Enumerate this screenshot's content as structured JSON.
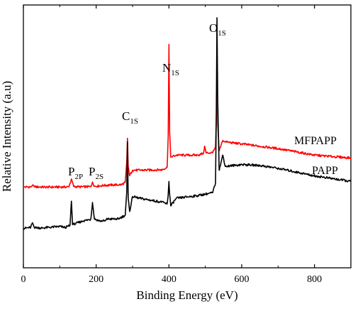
{
  "chart_data": {
    "type": "line",
    "title": "",
    "xlabel": "Binding Energy (eV)",
    "ylabel": "Relative Intensity (a.u)",
    "xlim": [
      0,
      900
    ],
    "xticks": [
      0,
      200,
      400,
      600,
      800
    ],
    "y_tick_labels": false,
    "grid": false,
    "legend": "none",
    "series": [
      {
        "name": "MFPAPP",
        "color": "#ff0000",
        "values": [
          [
            0,
            0.03
          ],
          [
            20,
            0.031
          ],
          [
            25,
            0.04
          ],
          [
            30,
            0.031
          ],
          [
            60,
            0.03
          ],
          [
            100,
            0.03
          ],
          [
            125,
            0.031
          ],
          [
            132,
            0.073
          ],
          [
            138,
            0.033
          ],
          [
            150,
            0.031
          ],
          [
            185,
            0.032
          ],
          [
            190,
            0.057
          ],
          [
            195,
            0.034
          ],
          [
            230,
            0.04
          ],
          [
            270,
            0.043
          ],
          [
            280,
            0.055
          ],
          [
            284,
            0.16
          ],
          [
            286,
            0.29
          ],
          [
            288,
            0.14
          ],
          [
            292,
            0.09
          ],
          [
            300,
            0.12
          ],
          [
            320,
            0.12
          ],
          [
            380,
            0.122
          ],
          [
            395,
            0.135
          ],
          [
            398,
            0.3
          ],
          [
            400,
            0.79
          ],
          [
            402,
            0.32
          ],
          [
            405,
            0.19
          ],
          [
            420,
            0.2
          ],
          [
            480,
            0.2
          ],
          [
            495,
            0.21
          ],
          [
            498,
            0.248
          ],
          [
            502,
            0.212
          ],
          [
            520,
            0.213
          ],
          [
            528,
            0.24
          ],
          [
            531,
            0.47
          ],
          [
            532,
            0.655
          ],
          [
            534,
            0.36
          ],
          [
            538,
            0.226
          ],
          [
            548,
            0.278
          ],
          [
            560,
            0.269
          ],
          [
            600,
            0.26
          ],
          [
            700,
            0.235
          ],
          [
            800,
            0.2
          ],
          [
            900,
            0.185
          ]
        ]
      },
      {
        "name": "PAPP",
        "color": "#000000",
        "values": [
          [
            0,
            -0.19
          ],
          [
            20,
            -0.185
          ],
          [
            25,
            -0.16
          ],
          [
            30,
            -0.185
          ],
          [
            50,
            -0.188
          ],
          [
            100,
            -0.18
          ],
          [
            115,
            -0.185
          ],
          [
            128,
            -0.175
          ],
          [
            132,
            -0.045
          ],
          [
            135,
            -0.17
          ],
          [
            150,
            -0.16
          ],
          [
            165,
            -0.15
          ],
          [
            185,
            -0.142
          ],
          [
            190,
            -0.052
          ],
          [
            195,
            -0.14
          ],
          [
            210,
            -0.15
          ],
          [
            225,
            -0.15
          ],
          [
            230,
            -0.14
          ],
          [
            260,
            -0.14
          ],
          [
            280,
            -0.12
          ],
          [
            284,
            0.0
          ],
          [
            286,
            0.271
          ],
          [
            288,
            -0.03
          ],
          [
            292,
            -0.1
          ],
          [
            300,
            -0.02
          ],
          [
            320,
            -0.03
          ],
          [
            380,
            -0.05
          ],
          [
            395,
            -0.06
          ],
          [
            398,
            -0.01
          ],
          [
            400,
            0.06
          ],
          [
            402,
            -0.01
          ],
          [
            405,
            -0.07
          ],
          [
            420,
            -0.03
          ],
          [
            480,
            -0.015
          ],
          [
            520,
            0.0
          ],
          [
            528,
            0.05
          ],
          [
            530,
            0.38
          ],
          [
            532,
            0.932
          ],
          [
            534,
            0.5
          ],
          [
            538,
            0.12
          ],
          [
            548,
            0.2
          ],
          [
            555,
            0.14
          ],
          [
            600,
            0.15
          ],
          [
            650,
            0.145
          ],
          [
            700,
            0.13
          ],
          [
            800,
            0.09
          ],
          [
            900,
            0.06
          ]
        ]
      }
    ],
    "series_labels": [
      {
        "series": "MFPAPP",
        "text": "MFPAPP"
      },
      {
        "series": "PAPP",
        "text": "PAPP"
      }
    ],
    "annotations": [
      {
        "name": "p2p",
        "main": "P",
        "sub": "2P",
        "x": 130
      },
      {
        "name": "p2s",
        "main": "P",
        "sub": "2S",
        "x": 190
      },
      {
        "name": "c1s",
        "main": "C",
        "sub": "1S",
        "x": 285
      },
      {
        "name": "n1s",
        "main": "N",
        "sub": "1S",
        "x": 400
      },
      {
        "name": "o1s",
        "main": "O",
        "sub": "1S",
        "x": 532
      }
    ]
  }
}
